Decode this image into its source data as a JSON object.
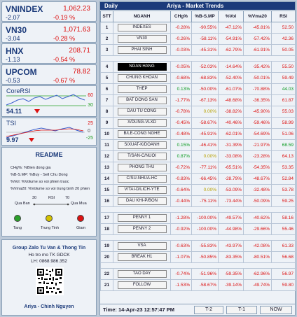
{
  "indices": [
    {
      "name": "VNINDEX",
      "price": "1,062.23",
      "change": "-2.07",
      "pct": "-0.19 %",
      "up": false
    },
    {
      "name": "VN30",
      "price": "1,071.63",
      "change": "-3.04",
      "pct": "-0.28 %",
      "up": false
    },
    {
      "name": "HNX",
      "price": "208.71",
      "change": "-1.13",
      "pct": "-0.54 %",
      "up": false
    },
    {
      "name": "UPCOM",
      "price": "78.82",
      "change": "-0.53",
      "pct": "-0.67 %",
      "up": false
    }
  ],
  "core_rsi": {
    "title": "CoreRSI",
    "value": "54.11",
    "axis_top": "60",
    "axis_bottom": "30",
    "line_color": "#3a5fcd",
    "guide_color": "#2aa02a"
  },
  "tsi": {
    "title": "TSI",
    "value": "9.97",
    "axis_top": "25",
    "axis_mid": "0",
    "axis_bottom": "-25",
    "line_color": "#3a5fcd"
  },
  "readme": {
    "title": "README",
    "lines": [
      "CHg%: %Bien dong gia",
      "%B-S.MP: %Buy - Sell Chu Dong",
      "%Vol: %Volume so voi phien truoc",
      "%Vma20: %Volume so voi trung binh 20 phien"
    ],
    "rsi_label": "RSI",
    "rsi_30": "30",
    "rsi_70": "70",
    "qua_ban": "Qua Ban",
    "qua_mua": "Qua Mua",
    "tang": "Tang",
    "trung_tinh": "Trung Tinh",
    "giam": "Giam",
    "colors": {
      "tang": "#2aa02a",
      "trung": "#d4c200",
      "giam": "#d11"
    }
  },
  "group": {
    "title": "Group Zalo Tu Van & Thong Tin",
    "line2": "Ho tro mo TK GDCK",
    "phone": "LH: 0868.986.352",
    "footer": "Ariya - Chinh Nguyen"
  },
  "table": {
    "title_left": "Daily",
    "title_mid": "Ariya -  Market Trends",
    "headers": [
      "STT",
      "NGANH",
      "CHg%",
      "%B-S.MP",
      "%Vol",
      "%Vma20",
      "RSI"
    ],
    "rows": [
      {
        "stt": "1",
        "name": "INDEXES",
        "chg": "-0.28%",
        "bs": "-90.55%",
        "vol": "-47.12%",
        "vma": "-45.81%",
        "rsi": "52.50",
        "c": [
          "r",
          "r",
          "r",
          "r",
          "r"
        ],
        "sel": false
      },
      {
        "stt": "2",
        "name": "VN30",
        "chg": "-0.26%",
        "bs": "-58.11%",
        "vol": "-54.91%",
        "vma": "-57.42%",
        "rsi": "42.36",
        "c": [
          "r",
          "r",
          "r",
          "r",
          "r"
        ],
        "sel": false
      },
      {
        "stt": "3",
        "name": "PHAI SINH",
        "chg": "-0.03%",
        "bs": "-45.31%",
        "vol": "-62.79%",
        "vma": "-61.91%",
        "rsi": "50.05",
        "c": [
          "r",
          "r",
          "r",
          "r",
          "r"
        ],
        "sel": false
      },
      {
        "blank": true
      },
      {
        "stt": "4",
        "name": "NGAN HANG",
        "chg": "-0.05%",
        "bs": "-52.03%",
        "vol": "-14.64%",
        "vma": "-35.42%",
        "rsi": "55.50",
        "c": [
          "r",
          "r",
          "r",
          "r",
          "r"
        ],
        "sel": true
      },
      {
        "stt": "5",
        "name": "CHUNG KHOAN",
        "chg": "-0.68%",
        "bs": "-68.83%",
        "vol": "-52.40%",
        "vma": "-50.01%",
        "rsi": "59.49",
        "c": [
          "r",
          "r",
          "r",
          "r",
          "r"
        ],
        "sel": false
      },
      {
        "stt": "6",
        "name": "THEP",
        "chg": "0.13%",
        "bs": "-50.00%",
        "vol": "-61.07%",
        "vma": "-70.88%",
        "rsi": "44.03",
        "c": [
          "g",
          "r",
          "r",
          "r",
          "g"
        ],
        "sel": false
      },
      {
        "stt": "7",
        "name": "BAT DONG SAN",
        "chg": "-1.77%",
        "bs": "-67.13%",
        "vol": "-48.68%",
        "vma": "-36.35%",
        "rsi": "61.87",
        "c": [
          "r",
          "r",
          "r",
          "r",
          "r"
        ],
        "sel": false
      },
      {
        "stt": "8",
        "name": "DAU TU CONG",
        "chg": "-0.78%",
        "bs": "0.00%",
        "vol": "-38.82%",
        "vma": "-45.90%",
        "rsi": "55.03",
        "c": [
          "r",
          "y",
          "r",
          "r",
          "r"
        ],
        "sel": false
      },
      {
        "stt": "9",
        "name": "X/DUNG-VLXD",
        "chg": "-0.45%",
        "bs": "-58.67%",
        "vol": "-40.46%",
        "vma": "-59.46%",
        "rsi": "58.99",
        "c": [
          "r",
          "r",
          "r",
          "r",
          "r"
        ],
        "sel": false
      },
      {
        "stt": "10",
        "name": "B/LE-CONG NGHE",
        "chg": "-0.48%",
        "bs": "-45.91%",
        "vol": "-62.01%",
        "vma": "-54.69%",
        "rsi": "51.06",
        "c": [
          "r",
          "r",
          "r",
          "r",
          "r"
        ],
        "sel": false
      },
      {
        "stt": "11",
        "name": "S/XUAT-K/DOANH",
        "chg": "0.15%",
        "bs": "-46.41%",
        "vol": "-31.39%",
        "vma": "-21.97%",
        "rsi": "68.59",
        "c": [
          "g",
          "r",
          "r",
          "r",
          "g"
        ],
        "sel": false
      },
      {
        "stt": "12",
        "name": "T/SAN-C/NUOI",
        "chg": "0.87%",
        "bs": "0.00%",
        "vol": "-33.08%",
        "vma": "-23.28%",
        "rsi": "64.13",
        "c": [
          "g",
          "y",
          "r",
          "r",
          "r"
        ],
        "sel": false
      },
      {
        "stt": "13",
        "name": "PHONG THU",
        "chg": "-0.72%",
        "bs": "-77.11%",
        "vol": "-65.51%",
        "vma": "-54.35%",
        "rsi": "53.35",
        "c": [
          "r",
          "r",
          "r",
          "r",
          "r"
        ],
        "sel": false
      },
      {
        "stt": "14",
        "name": "C/SU-NHUA-HC",
        "chg": "-0.83%",
        "bs": "-66.45%",
        "vol": "-28.79%",
        "vma": "-48.67%",
        "rsi": "52.84",
        "c": [
          "r",
          "r",
          "r",
          "r",
          "r"
        ],
        "sel": false
      },
      {
        "stt": "15",
        "name": "V/TAI-D/LICH-YTE",
        "chg": "-0.64%",
        "bs": "0.00%",
        "vol": "-53.09%",
        "vma": "-32.48%",
        "rsi": "53.78",
        "c": [
          "r",
          "y",
          "r",
          "r",
          "r"
        ],
        "sel": false
      },
      {
        "stt": "16",
        "name": "DAU KHI-P/BON",
        "chg": "-0.44%",
        "bs": "-75.11%",
        "vol": "-73.44%",
        "vma": "-50.09%",
        "rsi": "59.25",
        "c": [
          "r",
          "r",
          "r",
          "r",
          "r"
        ],
        "sel": false
      },
      {
        "blank": true
      },
      {
        "stt": "17",
        "name": "PENNY 1",
        "chg": "-1.28%",
        "bs": "-100.00%",
        "vol": "-49.57%",
        "vma": "-40.62%",
        "rsi": "58.16",
        "c": [
          "r",
          "r",
          "r",
          "r",
          "r"
        ],
        "sel": false
      },
      {
        "stt": "18",
        "name": "PENNY 2",
        "chg": "-0.92%",
        "bs": "-100.00%",
        "vol": "-44.98%",
        "vma": "-29.66%",
        "rsi": "55.46",
        "c": [
          "r",
          "r",
          "r",
          "r",
          "r"
        ],
        "sel": false
      },
      {
        "blank": true
      },
      {
        "stt": "19",
        "name": "VSA",
        "chg": "-0.63%",
        "bs": "-55.83%",
        "vol": "-43.97%",
        "vma": "-42.08%",
        "rsi": "61.33",
        "c": [
          "r",
          "r",
          "r",
          "r",
          "r"
        ],
        "sel": false
      },
      {
        "stt": "20",
        "name": "BREAK H1",
        "chg": "-1.07%",
        "bs": "-50.85%",
        "vol": "-83.35%",
        "vma": "-80.51%",
        "rsi": "56.68",
        "c": [
          "r",
          "r",
          "r",
          "r",
          "r"
        ],
        "sel": false
      },
      {
        "blank": true
      },
      {
        "stt": "22",
        "name": "TAO DAY",
        "chg": "-0.74%",
        "bs": "-51.96%",
        "vol": "-59.35%",
        "vma": "-62.96%",
        "rsi": "56.97",
        "c": [
          "r",
          "r",
          "r",
          "r",
          "r"
        ],
        "sel": false
      },
      {
        "stt": "21",
        "name": "FOLLOW",
        "chg": "-1.53%",
        "bs": "-58.67%",
        "vol": "-39.14%",
        "vma": "-49.74%",
        "rsi": "59.80",
        "c": [
          "r",
          "r",
          "r",
          "r",
          "r"
        ],
        "sel": false
      }
    ]
  },
  "footer": {
    "time": "Time: 14-Apr-23 12:57:47 PM",
    "btn_t2": "T-2",
    "btn_t1": "T-1",
    "btn_now": "NOW"
  }
}
